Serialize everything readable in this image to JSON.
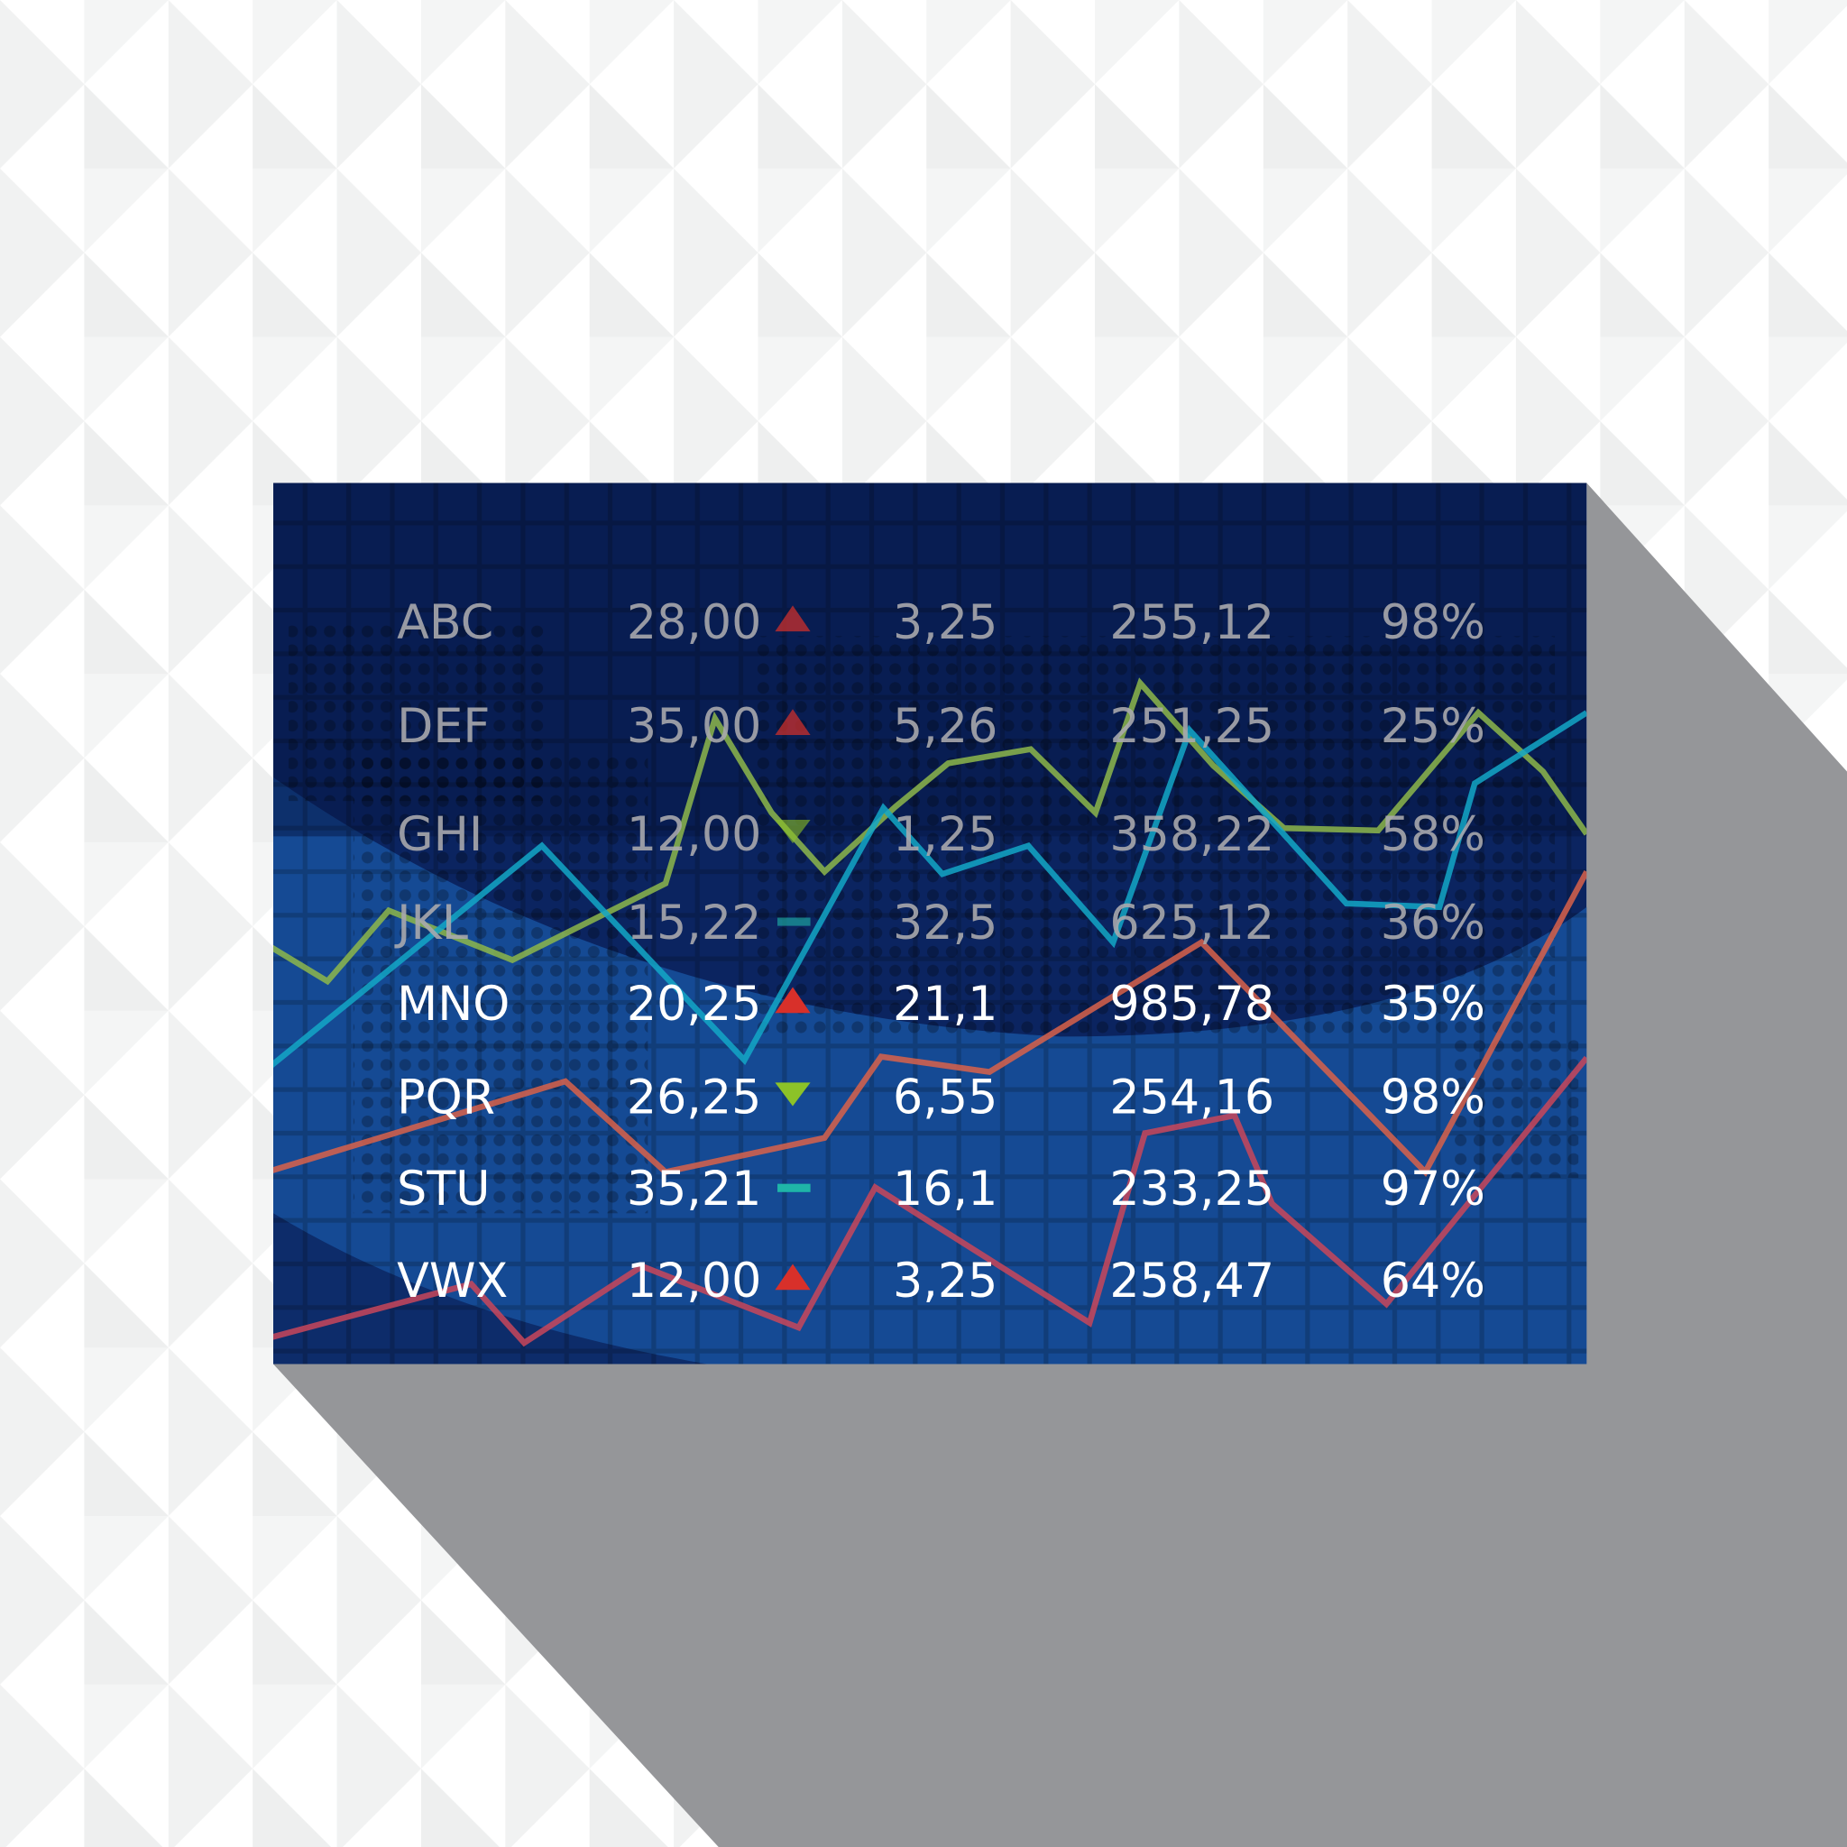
{
  "colors": {
    "board": "#0b2460",
    "board_light": "#154a94",
    "shadow": "#8f9094",
    "text_dim": "#a9a9ad",
    "text_bright": "#ffffff",
    "up": "#d8302a",
    "down": "#8cc228",
    "flat": "#1fb5a8",
    "line_green": "#8db74b",
    "line_cyan": "#13a7c7",
    "line_orange": "#d9624a",
    "line_red": "#c9475a"
  },
  "rows": [
    {
      "symbol": "ABC",
      "price": "28,00",
      "trend": "up",
      "change": "3,25",
      "value": "255,12",
      "pct": "98%"
    },
    {
      "symbol": "DEF",
      "price": "35,00",
      "trend": "up",
      "change": "5,26",
      "value": "251,25",
      "pct": "25%"
    },
    {
      "symbol": "GHI",
      "price": "12,00",
      "trend": "down",
      "change": "1,25",
      "value": "358,22",
      "pct": "58%"
    },
    {
      "symbol": "JKL",
      "price": "15,22",
      "trend": "flat",
      "change": "32,5",
      "value": "625,12",
      "pct": "36%"
    },
    {
      "symbol": "MNO",
      "price": "20,25",
      "trend": "up",
      "change": "21,1",
      "value": "985,78",
      "pct": "35%"
    },
    {
      "symbol": "PQR",
      "price": "26,25",
      "trend": "down",
      "change": "6,55",
      "value": "254,16",
      "pct": "98%"
    },
    {
      "symbol": "STU",
      "price": "35,21",
      "trend": "flat",
      "change": "16,1",
      "value": "233,25",
      "pct": "97%"
    },
    {
      "symbol": "VWX",
      "price": "12,00",
      "trend": "up",
      "change": "3,25",
      "value": "258,47",
      "pct": "64%"
    }
  ],
  "trend_icons": {
    "up": "triangle-up-icon",
    "down": "triangle-down-icon",
    "flat": "dash-icon"
  }
}
